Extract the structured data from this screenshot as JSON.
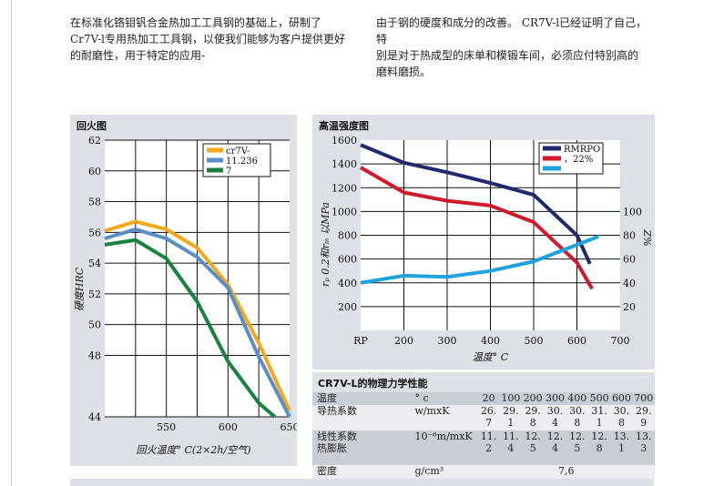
{
  "intro": {
    "left": [
      "在标准化铬钼钒合金热加工工具钢的基础上，研制了",
      "Cr7V-l专用热加工工具钢，以使我们能够为客户提供更好",
      "的耐磨性，用于特定的应用-"
    ],
    "right": [
      "由于钢的硬度和成分的改善。 CR7V-l已经证明了自己，特",
      "别是对于热成型的床单和模锻车间，必须应付特别高的",
      "磨料磨损。"
    ]
  },
  "tempering_chart": {
    "panel_title": "回火图"
  },
  "strength_chart": {
    "panel_title": "高温强度图"
  },
  "chart_data": [
    {
      "type": "line",
      "title": "回火图",
      "xlabel": "回火温度° C(2×2h/空气)",
      "ylabel": "硬度HRC",
      "xlim": [
        500,
        650
      ],
      "ylim": [
        44,
        62
      ],
      "x_ticks": [
        "550",
        "600",
        "650"
      ],
      "y_ticks": [
        "62",
        "60",
        "58",
        "56",
        "54",
        "52",
        "50",
        "48",
        "44"
      ],
      "grid": true,
      "legend": "top-right",
      "series": [
        {
          "name": "cr7V-",
          "color": "#f4a81d",
          "x": [
            500,
            525,
            550,
            575,
            600,
            625,
            650
          ],
          "y": [
            56.1,
            56.7,
            56.2,
            55.0,
            52.6,
            48.8,
            44.4
          ]
        },
        {
          "name": "11.236",
          "color": "#5b8ec7",
          "x": [
            500,
            525,
            550,
            575,
            600,
            625,
            650
          ],
          "y": [
            55.6,
            56.2,
            55.6,
            54.4,
            52.4,
            47.9,
            44.0
          ]
        },
        {
          "name": "7",
          "color": "#17833d",
          "x": [
            500,
            525,
            550,
            575,
            600,
            625,
            638
          ],
          "y": [
            55.2,
            55.5,
            54.3,
            51.5,
            47.6,
            44.9,
            44.0
          ]
        }
      ]
    },
    {
      "type": "line",
      "title": "高温强度图",
      "xlabel": "温度° C",
      "ylabel": "rₚ 0.2和rₘ 以MPa",
      "y2label": "Z%",
      "x_ticks": [
        "RP",
        "200",
        "300",
        "400",
        "500",
        "600",
        "700"
      ],
      "xlim": [
        100,
        700
      ],
      "ylim": [
        0,
        1600
      ],
      "y_ticks": [
        "1600",
        "1400",
        "1200",
        "1000",
        "800",
        "600",
        "400",
        "200"
      ],
      "y2lim": [
        0,
        160
      ],
      "y2_ticks": [
        "100",
        "80",
        "60",
        "40",
        "20"
      ],
      "grid": true,
      "legend": "top-right",
      "series": [
        {
          "name": "RMRPO",
          "color": "#1f2a6e",
          "axis": "left",
          "x": [
            100,
            200,
            300,
            400,
            500,
            600,
            630
          ],
          "y": [
            1560,
            1410,
            1330,
            1240,
            1140,
            800,
            560
          ]
        },
        {
          "name": "，22%",
          "color": "#d0192a",
          "axis": "left",
          "x": [
            100,
            200,
            300,
            400,
            500,
            600,
            635
          ],
          "y": [
            1370,
            1160,
            1090,
            1050,
            910,
            570,
            350
          ]
        },
        {
          "name": "",
          "color": "#1fa2dd",
          "axis": "right",
          "x": [
            100,
            200,
            300,
            400,
            500,
            600,
            650
          ],
          "y": [
            40,
            46,
            45,
            50,
            58,
            72,
            79
          ]
        }
      ]
    }
  ],
  "properties_table": {
    "title": "CR7V-L的物理力学性能",
    "rows": [
      {
        "label": "温度",
        "unit": "° c",
        "values": [
          "20",
          "100",
          "200",
          "300",
          "400",
          "500",
          "600",
          "700"
        ]
      },
      {
        "label": "导热系数",
        "unit": "w/mxK",
        "values": [
          "26.7",
          "29.1",
          "29.8",
          "30.4",
          "30.8",
          "31.1",
          "30.8",
          "29.9"
        ]
      },
      {
        "label": "线性系数\n热膨胀",
        "unit": "10⁻⁶m/mxK",
        "values": [
          "11.2",
          "11.4",
          "12.5",
          "12.4",
          "12.5",
          "12.8",
          "13.1",
          "13.3"
        ]
      },
      {
        "label": "密度",
        "unit": "g/cm³",
        "merged_value": "7,6"
      }
    ]
  }
}
